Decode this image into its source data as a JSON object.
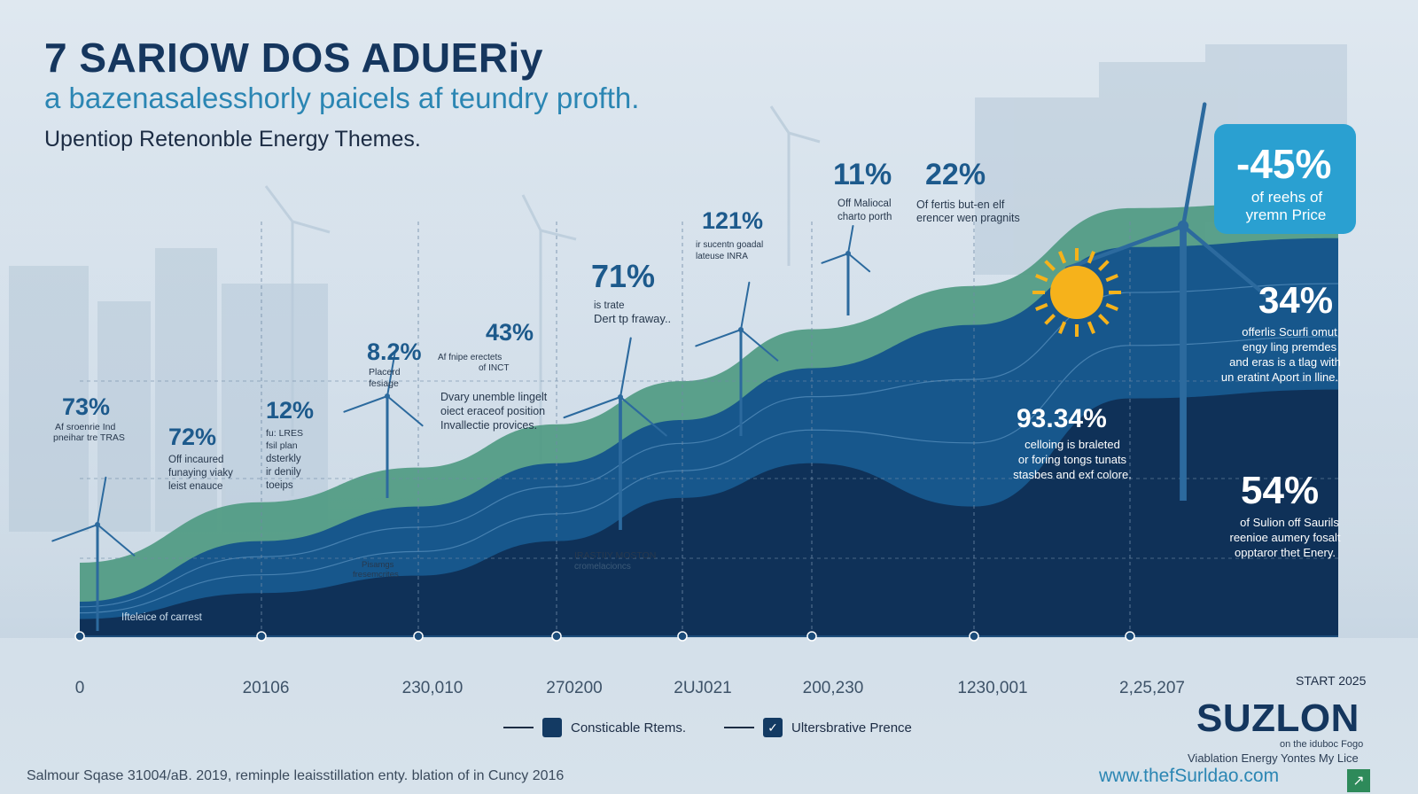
{
  "header": {
    "title": "7 SARIOW DOS ADUERiy",
    "subtitle": "a bazenasalesshorly pаicels af teundry profth.",
    "tagline": "Upentiop Retenonble Energy Themes."
  },
  "chart_data": {
    "type": "area",
    "x": [
      "0",
      "20106",
      "230,010",
      "270200",
      "2UJ021",
      "200,230",
      "1230,001",
      "2,25,207"
    ],
    "xlabel": "",
    "ylabel": "",
    "series": [
      {
        "name": "Consticable Rtems.",
        "values": [
          8,
          22,
          30,
          40,
          50,
          62,
          72,
          90
        ]
      },
      {
        "name": "Ultersbrative Prence",
        "values": [
          4,
          10,
          14,
          22,
          32,
          40,
          30,
          55
        ]
      }
    ],
    "ylim": [
      0,
      100
    ],
    "grid": true,
    "legend_position": "bottom-center",
    "annotations": [
      {
        "value": "73%",
        "caption": [
          "Af sroenrie Ind",
          "pneihar tre TRAS"
        ]
      },
      {
        "value": "72%",
        "caption": [
          "Off incaured",
          "funaying viaky",
          "leist enauce"
        ]
      },
      {
        "value": "12%",
        "caption": [
          "fu: LRES",
          "fsil plan",
          "dsterkly",
          "ir denily",
          "toeips"
        ]
      },
      {
        "value": "8.2%",
        "caption": [
          "Placerd",
          "fesiage"
        ]
      },
      {
        "value": "43%",
        "caption": [
          "Af fnipe erectets",
          "of INCT"
        ]
      },
      {
        "value": "71%",
        "caption": [
          "is trate",
          "Dert tp fraway.."
        ]
      },
      {
        "value": "121%",
        "caption": [
          "ir sucentn goadal",
          "lateuse INRA"
        ]
      },
      {
        "value": "11%",
        "caption": [
          "Off Maliocal",
          "charto porth"
        ]
      },
      {
        "value": "22%",
        "caption": [
          "Of fertis but-en elf",
          "erencer wen pragnits"
        ]
      },
      {
        "value": "-45%",
        "caption": [
          "of reehs of",
          "yremn Price"
        ]
      },
      {
        "value": "34%",
        "caption": [
          "offerlis Scurfi omut",
          "engy ling premdes",
          "and eras is a tlag with",
          "un eratint Aport in lline."
        ]
      },
      {
        "value": "93.34%",
        "caption": [
          "celloing is braleted",
          "or foring tongs tunats",
          "stasbes and exf colore."
        ]
      },
      {
        "value": "54%",
        "caption": [
          "of Sulion off Saurils",
          "reenioe aumery fosalt",
          "opptaror thet Enery."
        ]
      }
    ],
    "notes": [
      [
        "Dvary unemble lingelt",
        "oiect eraceof position",
        "Invallectie provices."
      ],
      [
        "IRASTIIY MOSTON",
        "cromelacioncs"
      ],
      [
        "Pisamgs",
        "fresemcrites"
      ],
      [
        "Ifteleice of carrest"
      ],
      [
        "START 2025"
      ]
    ]
  },
  "brand": {
    "logo": "SUZLON",
    "logo_line1": "on the iduboc Fogo",
    "logo_line2": "Viablation Energy Yontes My Lice",
    "url": "www.thefSurldao.com"
  },
  "footer": {
    "text": "Salmour Sqase 31004/aB. 2019, reminple leaisstillation enty. blation of in Cuncy 2016"
  },
  "colors": {
    "title": "#15365e",
    "subtitle": "#2b86b3",
    "green": "#4f9a82",
    "mid_blue": "#17578c",
    "navy": "#0f3158",
    "callout": "#2aa0d1"
  }
}
